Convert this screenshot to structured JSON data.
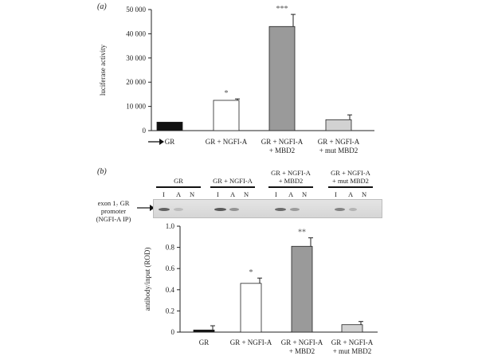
{
  "panel_a": {
    "label": "(a)"
  },
  "panel_b": {
    "label": "(b)",
    "gel": {
      "row_label_lines": [
        "exon 1₇ GR",
        "promoter",
        "(NGFI-A IP)"
      ],
      "groups": [
        {
          "lines": [
            "GR"
          ]
        },
        {
          "lines": [
            "GR + NGFI-A"
          ]
        },
        {
          "lines": [
            "GR + NGFI-A",
            "+ MBD2"
          ]
        },
        {
          "lines": [
            "GR + NGFI-A",
            "+ mut MBD2"
          ]
        }
      ],
      "lane_letters": [
        "I",
        "A",
        "N"
      ]
    }
  },
  "chart_data": [
    {
      "type": "bar",
      "ylabel": "luciferase activity",
      "ylim": [
        0,
        50000
      ],
      "yticks": [
        0,
        10000,
        20000,
        30000,
        40000,
        50000
      ],
      "ytick_labels": [
        "0",
        "10 000",
        "20 000",
        "30 000",
        "40 000",
        "50 000"
      ],
      "categories": [
        {
          "lines": [
            "GR"
          ]
        },
        {
          "lines": [
            "GR + NGFI-A"
          ]
        },
        {
          "lines": [
            "GR + NGFI-A",
            "+ MBD2"
          ]
        },
        {
          "lines": [
            "GR + NGFI-A",
            "+ mut MBD2"
          ]
        }
      ],
      "values": [
        3500,
        12500,
        43000,
        4500
      ],
      "errors": [
        0,
        600,
        5000,
        2000
      ],
      "significance": [
        "",
        "*",
        "***",
        ""
      ],
      "colors": [
        "#111111",
        "#ffffff",
        "#9a9a9a",
        "#d2d2d2"
      ],
      "x_arrow": true
    },
    {
      "type": "bar",
      "ylabel": "antibody/input (ROD)",
      "ylim": [
        0,
        1.0
      ],
      "yticks": [
        0,
        0.2,
        0.4,
        0.6,
        0.8,
        1.0
      ],
      "ytick_labels": [
        "0",
        "0.2",
        "0.4",
        "0.6",
        "0.8",
        "1.0"
      ],
      "categories": [
        {
          "lines": [
            "GR"
          ]
        },
        {
          "lines": [
            "GR + NGFI-A"
          ]
        },
        {
          "lines": [
            "GR + NGFI-A",
            "+ MBD2"
          ]
        },
        {
          "lines": [
            "GR + NGFI-A",
            "+ mut MBD2"
          ]
        }
      ],
      "values": [
        0.02,
        0.46,
        0.81,
        0.07
      ],
      "errors": [
        0.04,
        0.05,
        0.08,
        0.03
      ],
      "significance": [
        "",
        "*",
        "**",
        ""
      ],
      "colors": [
        "#111111",
        "#ffffff",
        "#9a9a9a",
        "#d2d2d2"
      ],
      "x_arrow": false
    }
  ]
}
